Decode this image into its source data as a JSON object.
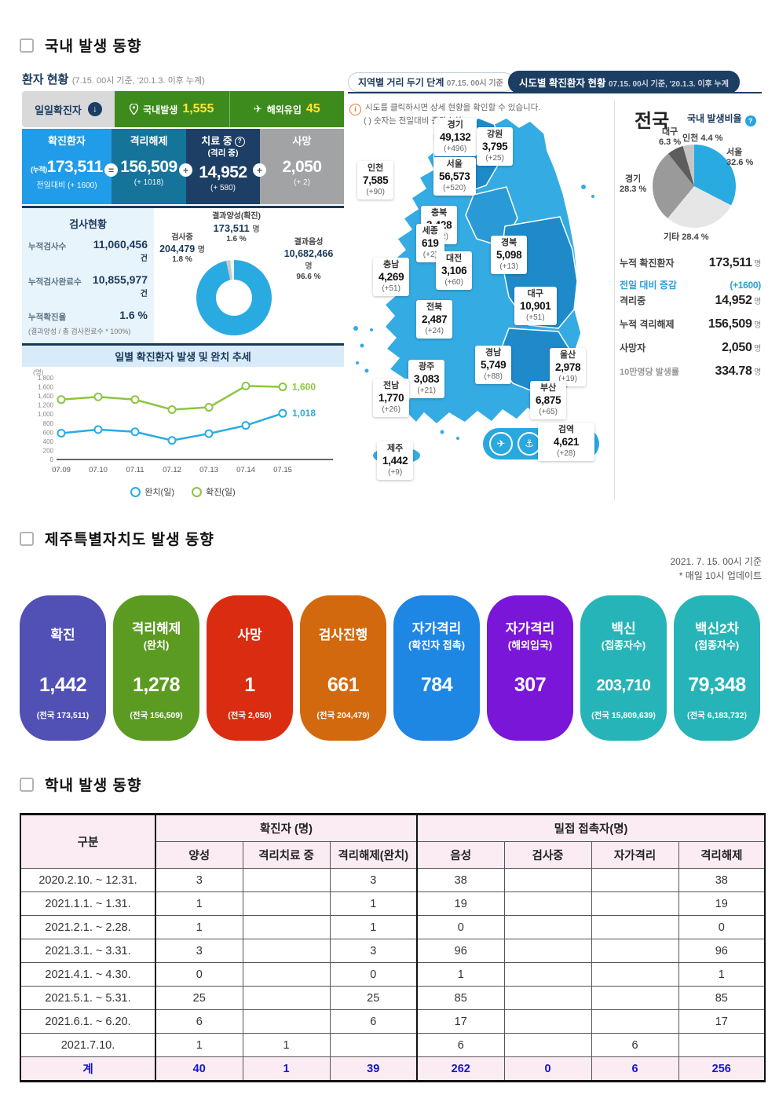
{
  "page": {
    "section1_title": "국내 발생 동향",
    "section2_title": "제주특별자치도 발생 동향",
    "section3_title": "학내 발생 동향",
    "jeju_note1": "2021. 7. 15. 00시 기준",
    "jeju_note2": "* 매일 10시 업데이트"
  },
  "patient_status": {
    "title": "환자 현황",
    "subtitle": "(7.15. 00시 기준, '20.1.3. 이후 누계)",
    "daily_label": "일일확진자",
    "domestic_label": "국내발생",
    "domestic_value": "1,555",
    "imported_label": "해외유입",
    "imported_value": "45",
    "boxes": [
      {
        "label": "확진환자",
        "sub": "",
        "prefix": "(누적)",
        "value": "173,511",
        "delta": "전일대비 (+ 1600)",
        "badge": "=",
        "color": "#219ce8"
      },
      {
        "label": "격리해제",
        "sub": "",
        "prefix": "",
        "value": "156,509",
        "delta": "(+ 1018)",
        "badge": "+",
        "color": "#16749b"
      },
      {
        "label": "치료 중",
        "sub": "(격리 중)",
        "help": "?",
        "prefix": "",
        "value": "14,952",
        "delta": "(+ 580)",
        "badge": "+",
        "color": "#1d3f66"
      },
      {
        "label": "사망",
        "sub": "",
        "prefix": "",
        "value": "2,050",
        "delta": "(+ 2)",
        "badge": "",
        "color": "#a2a3a5"
      }
    ]
  },
  "test_status": {
    "title": "검사현황",
    "rows": [
      {
        "label": "누적검사수",
        "value": "11,060,456",
        "unit": "건"
      },
      {
        "label": "누적검사완료수",
        "value": "10,855,977",
        "unit": "건"
      },
      {
        "label": "누적확진율",
        "value": "1.6 %",
        "unit": ""
      }
    ],
    "formula": "(결과양성 / 총 검사완료수 * 100%)",
    "donut": {
      "positive_label": "결과양성(확진)",
      "positive_value": "173,511",
      "positive_unit": "명",
      "positive_pct": "1.6 %",
      "testing_label": "검사중",
      "testing_value": "204,479",
      "testing_unit": "명",
      "testing_pct": "1.8 %",
      "negative_label": "결과음성",
      "negative_value": "10,682,466",
      "negative_unit": "명",
      "negative_pct": "96.6 %"
    }
  },
  "map": {
    "tab1_label": "지역별 거리 두기 단계",
    "tab1_date": "07.15. 00시 기준",
    "tab2_label": "시도별 확진환자 현황",
    "tab2_date": "07.15. 00시 기준, '20.1.3. 이후 누계",
    "note1": "시도를 클릭하시면 상세 현황을 확인할 수 있습니다.",
    "note2": "( ) 숫자는 전일대비 증감수치",
    "quarantine": {
      "name": "검역",
      "value": "4,621",
      "delta": "(+28)"
    },
    "regions": [
      {
        "name": "경기",
        "value": "49,132",
        "delta": "(+496)"
      },
      {
        "name": "강원",
        "value": "3,795",
        "delta": "(+25)"
      },
      {
        "name": "인천",
        "value": "7,585",
        "delta": "(+90)"
      },
      {
        "name": "서울",
        "value": "56,573",
        "delta": "(+520)"
      },
      {
        "name": "충북",
        "value": "3,428",
        "delta": "(+12)"
      },
      {
        "name": "세종",
        "value": "619",
        "delta": "(+2)"
      },
      {
        "name": "대전",
        "value": "3,106",
        "delta": "(+60)"
      },
      {
        "name": "충남",
        "value": "4,269",
        "delta": "(+51)"
      },
      {
        "name": "경북",
        "value": "5,098",
        "delta": "(+13)"
      },
      {
        "name": "대구",
        "value": "10,901",
        "delta": "(+51)"
      },
      {
        "name": "전북",
        "value": "2,487",
        "delta": "(+24)"
      },
      {
        "name": "경남",
        "value": "5,749",
        "delta": "(+88)"
      },
      {
        "name": "울산",
        "value": "2,978",
        "delta": "(+19)"
      },
      {
        "name": "광주",
        "value": "3,083",
        "delta": "(+21)"
      },
      {
        "name": "전남",
        "value": "1,770",
        "delta": "(+26)"
      },
      {
        "name": "부산",
        "value": "6,875",
        "delta": "(+65)"
      },
      {
        "name": "제주",
        "value": "1,442",
        "delta": "(+9)"
      }
    ]
  },
  "national": {
    "title": "전국",
    "ratio_label": "국내 발생비율",
    "pie_labels": {
      "daegu": "대구",
      "daegu_pct": "6.3 %",
      "incheon": "인천",
      "incheon_pct": "4.4 %",
      "seoul": "서울",
      "seoul_pct": "32.6 %",
      "gyeonggi": "경기",
      "gyeonggi_pct": "28.3 %",
      "etc": "기타 28.4 %"
    },
    "stats": [
      {
        "label": "누적 확진환자",
        "value": "173,511",
        "unit": "명",
        "style": ""
      },
      {
        "label": "전일 대비 증감",
        "value": "(+1600)",
        "unit": "",
        "style": "accent"
      },
      {
        "label": "격리중",
        "value": "14,952",
        "unit": "명",
        "style": ""
      },
      {
        "label": "누적 격리해제",
        "value": "156,509",
        "unit": "명",
        "style": ""
      },
      {
        "label": "사망자",
        "value": "2,050",
        "unit": "명",
        "style": ""
      },
      {
        "label": "10만명당 발생률",
        "value": "334.78",
        "unit": "명",
        "style": "muted"
      }
    ]
  },
  "jeju_cards": [
    {
      "label": "확진",
      "sublabel": "",
      "value": "1,442",
      "note": "(전국 173,511)",
      "color": "#5150b4"
    },
    {
      "label": "격리해제",
      "sublabel": "(완치)",
      "value": "1,278",
      "note": "(전국 156,509)",
      "color": "#5c9b21"
    },
    {
      "label": "사망",
      "sublabel": "",
      "value": "1",
      "note": "(전국 2,050)",
      "color": "#d92c10"
    },
    {
      "label": "검사진행",
      "sublabel": "",
      "value": "661",
      "note": "(전국 204,479)",
      "color": "#d2690f"
    },
    {
      "label": "자가격리",
      "sublabel": "(확진자 접촉)",
      "value": "784",
      "note": "",
      "color": "#1e86e3"
    },
    {
      "label": "자가격리",
      "sublabel": "(해외입국)",
      "value": "307",
      "note": "",
      "color": "#7a16d8"
    },
    {
      "label": "백신",
      "sublabel": "(접종자수)",
      "value": "203,710",
      "note": "(전국 15,809,639)",
      "color": "#27b4b8"
    },
    {
      "label": "백신2차",
      "sublabel": "(접종자수)",
      "value": "79,348",
      "note": "(전국 6,183,732)",
      "color": "#27b4b8"
    }
  ],
  "school_table": {
    "col_category": "구분",
    "group_confirmed": "확진자 (명)",
    "group_contacts": "밀접 접촉자(명)",
    "sub_headers": [
      "양성",
      "격리치료 중",
      "격리해제(완치)",
      "음성",
      "검사중",
      "자가격리",
      "격리해제"
    ],
    "rows": [
      [
        "2020.2.10.  ~ 12.31.",
        "3",
        "",
        "3",
        "38",
        "",
        "",
        "38"
      ],
      [
        "2021.1.1.  ~  1.31.",
        "1",
        "",
        "1",
        "19",
        "",
        "",
        "19"
      ],
      [
        "2021.2.1.  ~  2.28.",
        "1",
        "",
        "1",
        "0",
        "",
        "",
        "0"
      ],
      [
        "2021.3.1.  ~  3.31.",
        "3",
        "",
        "3",
        "96",
        "",
        "",
        "96"
      ],
      [
        "2021.4.1.  ~  4.30.",
        "0",
        "",
        "0",
        "1",
        "",
        "",
        "1"
      ],
      [
        "2021.5.1.  ~  5.31.",
        "25",
        "",
        "25",
        "85",
        "",
        "",
        "85"
      ],
      [
        "2021.6.1.  ~  6.20.",
        "6",
        "",
        "6",
        "17",
        "",
        "",
        "17"
      ],
      [
        "2021.7.10.",
        "1",
        "1",
        "",
        "6",
        "",
        "6",
        ""
      ],
      [
        "계",
        "40",
        "1",
        "39",
        "262",
        "0",
        "6",
        "256"
      ]
    ]
  },
  "chart_data": [
    {
      "type": "line",
      "title": "일별 확진환자 발생 및 완치 추세",
      "x": [
        "07.09",
        "07.10",
        "07.11",
        "07.12",
        "07.13",
        "07.14",
        "07.15"
      ],
      "series": [
        {
          "name": "완치(일)",
          "color": "#29abe2",
          "values": [
            580,
            660,
            610,
            420,
            570,
            750,
            1018
          ]
        },
        {
          "name": "확진(일)",
          "color": "#8cc63f",
          "values": [
            1320,
            1380,
            1320,
            1100,
            1150,
            1620,
            1600
          ]
        }
      ],
      "end_labels": [
        "1,018",
        "1,600"
      ],
      "ylabel": "(명)",
      "ylim": [
        0,
        1800
      ],
      "ytick_step": 200,
      "grid": false,
      "legend_position": "bottom"
    },
    {
      "type": "pie",
      "title": "국내 발생비율",
      "categories": [
        "서울",
        "기타",
        "경기",
        "대구",
        "인천"
      ],
      "values": [
        32.6,
        28.4,
        28.3,
        6.3,
        4.4
      ]
    },
    {
      "type": "pie",
      "title": "검사현황 도넛",
      "categories": [
        "결과음성",
        "검사중",
        "결과양성(확진)"
      ],
      "values": [
        96.6,
        1.8,
        1.6
      ]
    }
  ]
}
